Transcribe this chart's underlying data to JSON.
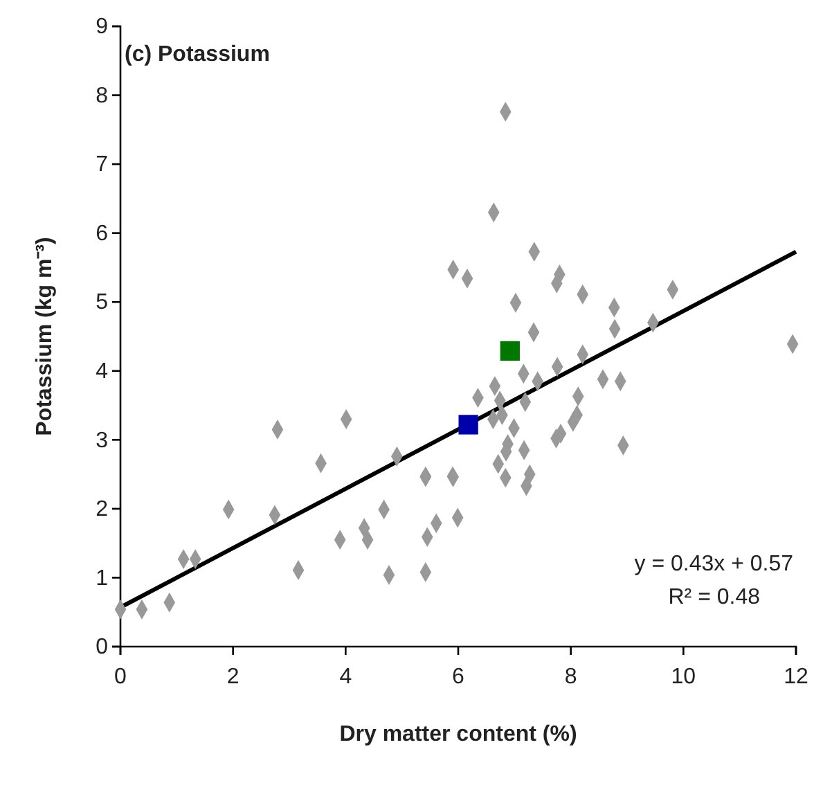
{
  "chart_data": {
    "type": "scatter",
    "title": "(c) Potassium",
    "xlabel": "Dry matter content (%)",
    "ylabel": "Potassium (kg m⁻³)",
    "xlim": [
      0,
      12
    ],
    "xticks": [
      0,
      2,
      4,
      6,
      8,
      10,
      12
    ],
    "ylim": [
      0,
      9
    ],
    "yticks": [
      0,
      1,
      2,
      3,
      4,
      5,
      6,
      7,
      8,
      9
    ],
    "grid": false,
    "annotations": [
      "y = 0.43x + 0.57",
      "R² = 0.48"
    ],
    "series": [
      {
        "color": "#999999",
        "marker": "diamond",
        "x": [
          0.0,
          0.38,
          0.87,
          1.12,
          1.33,
          1.92,
          2.74,
          2.79,
          3.16,
          3.56,
          3.9,
          4.01,
          4.33,
          4.39,
          4.68,
          4.77,
          4.91,
          5.42,
          5.42,
          5.45,
          5.61,
          5.9,
          5.99,
          6.84,
          6.63,
          7.35,
          5.91,
          6.16,
          7.8,
          7.75,
          8.21,
          9.81,
          7.02,
          8.77,
          8.78,
          9.46,
          7.34,
          11.94,
          8.21,
          7.76,
          7.16,
          7.41,
          8.57,
          8.88,
          6.65,
          6.35,
          6.74,
          7.19,
          8.13,
          6.78,
          6.62,
          8.11,
          8.04,
          6.99,
          7.82,
          7.74,
          6.88,
          6.85,
          7.17,
          8.93,
          6.71,
          5.42,
          5.91,
          6.84,
          7.27,
          7.21
        ],
        "values": [
          0.54,
          0.54,
          0.64,
          1.27,
          1.27,
          1.99,
          1.91,
          3.15,
          1.11,
          2.66,
          1.55,
          3.3,
          1.72,
          1.55,
          1.99,
          1.04,
          2.76,
          2.47,
          1.08,
          1.59,
          1.79,
          2.47,
          1.87,
          7.76,
          6.3,
          5.73,
          5.47,
          5.34,
          5.4,
          5.27,
          5.11,
          5.18,
          4.99,
          4.92,
          4.61,
          4.7,
          4.56,
          4.39,
          4.24,
          4.06,
          3.96,
          3.85,
          3.88,
          3.85,
          3.78,
          3.61,
          3.57,
          3.55,
          3.63,
          3.36,
          3.3,
          3.36,
          3.26,
          3.17,
          3.09,
          3.02,
          2.94,
          2.83,
          2.85,
          2.92,
          2.65,
          2.46,
          2.46,
          2.45,
          2.5,
          2.33
        ]
      },
      {
        "type": "line",
        "color": "#000000",
        "marker": "none",
        "line_style": "solid",
        "x": [
          0,
          12
        ],
        "values": [
          0.57,
          5.73
        ]
      },
      {
        "color": "#0000aa",
        "marker": "square",
        "x": [
          6.18
        ],
        "values": [
          3.22
        ]
      },
      {
        "color": "#007700",
        "marker": "square",
        "x": [
          6.92
        ],
        "values": [
          4.29
        ]
      }
    ]
  }
}
